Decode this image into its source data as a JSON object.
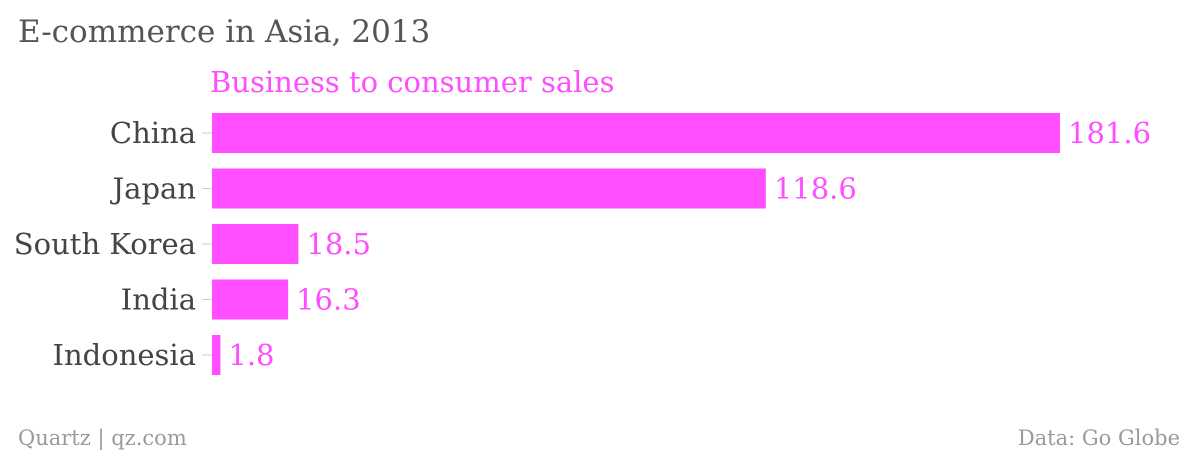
{
  "chart_data": {
    "type": "bar",
    "orientation": "horizontal",
    "title": "E-commerce in Asia, 2013",
    "categories": [
      "China",
      "Japan",
      "South Korea",
      "India",
      "Indonesia"
    ],
    "series": [
      {
        "name": "Business to consumer sales",
        "values": [
          181.6,
          118.6,
          18.5,
          16.3,
          1.8
        ],
        "color": "#ff4dff"
      }
    ],
    "xlim": [
      0,
      181.6
    ],
    "grid": false,
    "legend": "top"
  },
  "footer": {
    "source_left": "Quartz | qz.com",
    "source_right": "Data: Go Globe"
  },
  "colors": {
    "bar": "#ff4dff",
    "title": "#555555",
    "category_text": "#444444",
    "footer_text": "#9a9a9a"
  }
}
